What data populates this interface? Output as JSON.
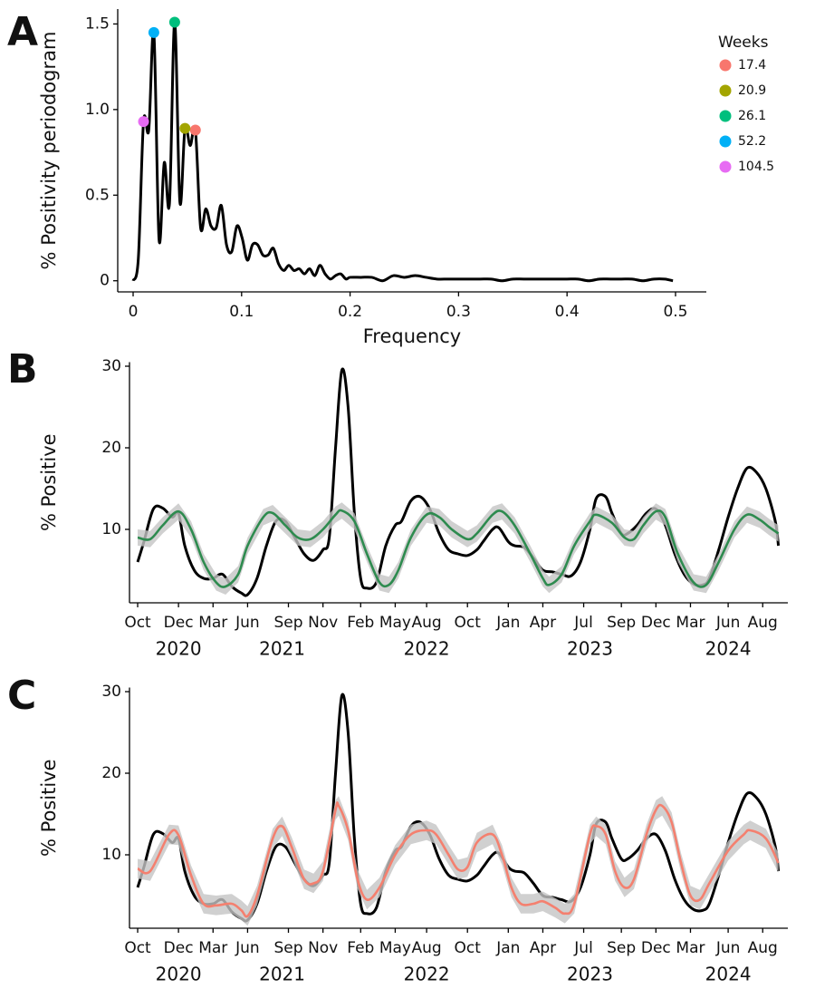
{
  "chart_data": [
    {
      "type": "line",
      "panel_label": "A",
      "ylabel": "% Positivity periodogram",
      "xlabel": "Frequency",
      "xlim": [
        -0.0142,
        0.5284
      ],
      "xticks": [
        0,
        0.1,
        0.2,
        0.3,
        0.4,
        0.5
      ],
      "ylim": [
        -0.065,
        1.587
      ],
      "yticks": [
        0,
        0.5,
        {
          "value": 1,
          "label": "1.0"
        },
        1.5
      ],
      "series": [
        {
          "color": "#000000",
          "x": [
            0,
            0.0048,
            0.0096,
            0.0144,
            0.0191,
            0.0239,
            0.0287,
            0.0335,
            0.0383,
            0.0431,
            0.0478,
            0.0526,
            0.0574,
            0.0622,
            0.067,
            0.0718,
            0.0766,
            0.0813,
            0.0861,
            0.0909,
            0.0957,
            0.1005,
            0.1053,
            0.11,
            0.1148,
            0.1196,
            0.1244,
            0.1292,
            0.134,
            0.1388,
            0.1435,
            0.1483,
            0.1531,
            0.1579,
            0.1627,
            0.1675,
            0.1722,
            0.177,
            0.1818,
            0.1866,
            0.1914,
            0.1962,
            0.2,
            0.21,
            0.22,
            0.23,
            0.24,
            0.25,
            0.26,
            0.27,
            0.28,
            0.29,
            0.3,
            0.31,
            0.32,
            0.33,
            0.34,
            0.35,
            0.36,
            0.37,
            0.38,
            0.39,
            0.4,
            0.41,
            0.42,
            0.43,
            0.44,
            0.45,
            0.46,
            0.47,
            0.48,
            0.49,
            0.4976
          ],
          "values": [
            0,
            0.13,
            0.93,
            0.88,
            1.45,
            0.24,
            0.69,
            0.45,
            1.51,
            0.46,
            0.89,
            0.79,
            0.88,
            0.31,
            0.42,
            0.32,
            0.31,
            0.44,
            0.21,
            0.17,
            0.32,
            0.25,
            0.12,
            0.21,
            0.21,
            0.15,
            0.15,
            0.19,
            0.1,
            0.06,
            0.09,
            0.06,
            0.07,
            0.04,
            0.07,
            0.03,
            0.09,
            0.04,
            0.01,
            0.03,
            0.04,
            0.01,
            0.02,
            0.02,
            0.02,
            0,
            0.03,
            0.02,
            0.03,
            0.02,
            0.01,
            0.01,
            0.01,
            0.01,
            0.01,
            0.01,
            0,
            0.01,
            0.01,
            0.01,
            0.01,
            0.01,
            0.01,
            0.01,
            0,
            0.01,
            0.01,
            0.01,
            0.01,
            0,
            0.01,
            0.01,
            0
          ]
        }
      ],
      "legend_title": "Weeks",
      "points": [
        {
          "name": "17.4",
          "color": "#f8766d",
          "x": 0.0574,
          "value": 0.88
        },
        {
          "name": "20.9",
          "color": "#a3a500",
          "x": 0.0478,
          "value": 0.89
        },
        {
          "name": "26.1",
          "color": "#00bf7d",
          "x": 0.0383,
          "value": 1.51
        },
        {
          "name": "52.2",
          "color": "#00b0f6",
          "x": 0.0191,
          "value": 1.45
        },
        {
          "name": "104.5",
          "color": "#e76bf3",
          "x": 0.0096,
          "value": 0.93
        }
      ]
    },
    {
      "type": "line",
      "panel_label": "B",
      "ylabel": "% Positive",
      "xlim": [
        -2.6,
        207
      ],
      "ylim": [
        1,
        30.5
      ],
      "yticks": [
        10,
        20,
        30
      ],
      "xticks": [
        {
          "value": 0,
          "label": "Oct"
        },
        {
          "value": 13,
          "label": "Dec"
        },
        {
          "value": 24,
          "label": "Mar"
        },
        {
          "value": 35,
          "label": "Jun"
        },
        {
          "value": 48,
          "label": "Sep"
        },
        {
          "value": 59,
          "label": "Nov"
        },
        {
          "value": 71,
          "label": "Feb"
        },
        {
          "value": 82,
          "label": "May"
        },
        {
          "value": 92,
          "label": "Aug"
        },
        {
          "value": 105,
          "label": "Oct"
        },
        {
          "value": 118,
          "label": "Jan"
        },
        {
          "value": 129,
          "label": "Apr"
        },
        {
          "value": 142,
          "label": "Jul"
        },
        {
          "value": 154,
          "label": "Sep"
        },
        {
          "value": 165,
          "label": "Dec"
        },
        {
          "value": 176,
          "label": "Mar"
        },
        {
          "value": 188,
          "label": "Jun"
        },
        {
          "value": 199,
          "label": "Aug"
        }
      ],
      "year_labels": [
        {
          "value": 13,
          "label": "2020"
        },
        {
          "value": 46,
          "label": "2021"
        },
        {
          "value": 92,
          "label": "2022"
        },
        {
          "value": 144,
          "label": "2023"
        },
        {
          "value": 188,
          "label": "2024"
        }
      ],
      "series": [
        {
          "color": "#000000",
          "x": [
            0,
            2,
            5,
            8,
            11,
            13,
            15,
            18,
            21,
            24,
            27,
            30,
            33,
            35,
            38,
            41,
            44,
            47,
            50,
            53,
            56,
            59,
            61,
            63,
            65,
            67,
            69,
            71,
            73,
            76,
            79,
            82,
            84,
            87,
            90,
            93,
            96,
            99,
            102,
            105,
            108,
            110,
            113,
            115,
            118,
            120,
            123,
            126,
            129,
            132,
            135,
            138,
            141,
            144,
            146,
            149,
            151,
            154,
            156,
            159,
            162,
            165,
            168,
            171,
            174,
            177,
            180,
            182,
            185,
            188,
            191,
            194,
            197,
            200,
            203,
            204
          ],
          "values": [
            6,
            8.5,
            12.5,
            12.6,
            11.5,
            12,
            8,
            5,
            4,
            4,
            4.5,
            3,
            2.2,
            2,
            4,
            8,
            11,
            11,
            9,
            7,
            6.2,
            7.5,
            9,
            20,
            29.5,
            25,
            12,
            4,
            2.8,
            3.5,
            8,
            10.5,
            11,
            13.5,
            14,
            12.5,
            9.5,
            7.5,
            7,
            6.8,
            7.5,
            8.5,
            10,
            10.2,
            8.5,
            8,
            7.8,
            6.5,
            5,
            4.8,
            4.5,
            4.3,
            6,
            10,
            13.8,
            14,
            12,
            9.5,
            9.5,
            10.5,
            12,
            12.5,
            10.5,
            7,
            4.5,
            3.3,
            3.2,
            4,
            7.5,
            11.5,
            15,
            17.5,
            17,
            15,
            11,
            8
          ]
        },
        {
          "color": "#2e8b4f",
          "ci": 1.0,
          "x": [
            0,
            4,
            8,
            13,
            17,
            21,
            25,
            28,
            32,
            35,
            40,
            43,
            47,
            51,
            55,
            59,
            63,
            65,
            69,
            73,
            77,
            80,
            83,
            87,
            92,
            96,
            100,
            105,
            108,
            113,
            116,
            120,
            125,
            129,
            131,
            135,
            139,
            144,
            146,
            151,
            155,
            158,
            161,
            165,
            168,
            172,
            177,
            181,
            185,
            190,
            194,
            198,
            201,
            204
          ],
          "values": [
            9,
            8.8,
            10.5,
            12.2,
            10,
            6,
            3.5,
            3,
            4.5,
            8,
            11.5,
            12,
            10.5,
            9,
            8.8,
            10,
            11.8,
            12.3,
            11,
            7,
            3.5,
            3.2,
            5,
            9,
            11.8,
            11.5,
            10,
            8.8,
            9.5,
            11.8,
            12.2,
            10.5,
            7,
            4,
            3.2,
            4.5,
            8,
            11,
            11.8,
            10.8,
            9,
            8.8,
            10.5,
            12.2,
            11.5,
            7,
            3.5,
            3.2,
            6,
            10,
            11.8,
            11.2,
            10.3,
            9.5
          ]
        }
      ]
    },
    {
      "type": "line",
      "panel_label": "C",
      "ylabel": "% Positive",
      "xlim": [
        -2.6,
        207
      ],
      "ylim": [
        1,
        30.5
      ],
      "yticks": [
        10,
        20,
        30
      ],
      "xticks": [
        {
          "value": 0,
          "label": "Oct"
        },
        {
          "value": 13,
          "label": "Dec"
        },
        {
          "value": 24,
          "label": "Mar"
        },
        {
          "value": 35,
          "label": "Jun"
        },
        {
          "value": 48,
          "label": "Sep"
        },
        {
          "value": 59,
          "label": "Nov"
        },
        {
          "value": 71,
          "label": "Feb"
        },
        {
          "value": 82,
          "label": "May"
        },
        {
          "value": 92,
          "label": "Aug"
        },
        {
          "value": 105,
          "label": "Oct"
        },
        {
          "value": 118,
          "label": "Jan"
        },
        {
          "value": 129,
          "label": "Apr"
        },
        {
          "value": 142,
          "label": "Jul"
        },
        {
          "value": 154,
          "label": "Sep"
        },
        {
          "value": 165,
          "label": "Dec"
        },
        {
          "value": 176,
          "label": "Mar"
        },
        {
          "value": 188,
          "label": "Jun"
        },
        {
          "value": 199,
          "label": "Aug"
        }
      ],
      "year_labels": [
        {
          "value": 13,
          "label": "2020"
        },
        {
          "value": 46,
          "label": "2021"
        },
        {
          "value": 92,
          "label": "2022"
        },
        {
          "value": 144,
          "label": "2023"
        },
        {
          "value": 188,
          "label": "2024"
        }
      ],
      "series": [
        {
          "color": "#000000",
          "x": [
            0,
            2,
            5,
            8,
            11,
            13,
            15,
            18,
            21,
            24,
            27,
            30,
            33,
            35,
            38,
            41,
            44,
            47,
            50,
            53,
            56,
            59,
            61,
            63,
            65,
            67,
            69,
            71,
            73,
            76,
            79,
            82,
            84,
            87,
            90,
            93,
            96,
            99,
            102,
            105,
            108,
            110,
            113,
            115,
            118,
            120,
            123,
            126,
            129,
            132,
            135,
            138,
            141,
            144,
            146,
            149,
            151,
            154,
            156,
            159,
            162,
            165,
            168,
            171,
            174,
            177,
            180,
            182,
            185,
            188,
            191,
            194,
            197,
            200,
            203,
            204
          ],
          "values": [
            6,
            8.5,
            12.5,
            12.6,
            11.5,
            12,
            8,
            5,
            4,
            4,
            4.5,
            3,
            2.2,
            2,
            4,
            8,
            11,
            11,
            9,
            7,
            6.2,
            7.5,
            9,
            20,
            29.5,
            25,
            12,
            4,
            2.8,
            3.5,
            8,
            10.5,
            11,
            13.5,
            14,
            12.5,
            9.5,
            7.5,
            7,
            6.8,
            7.5,
            8.5,
            10,
            10.2,
            8.5,
            8,
            7.8,
            6.5,
            5,
            4.8,
            4.5,
            4.3,
            6,
            10,
            13.8,
            14,
            12,
            9.5,
            9.5,
            10.5,
            12,
            12.5,
            10.5,
            7,
            4.5,
            3.3,
            3.2,
            4,
            7.5,
            11.5,
            15,
            17.5,
            17,
            15,
            11,
            8
          ]
        },
        {
          "color": "#f4806f",
          "ci": 1.2,
          "x": [
            0,
            4,
            10,
            13,
            17,
            21,
            25,
            30,
            33,
            35,
            38,
            43,
            46,
            49,
            53,
            56,
            59,
            63,
            64,
            67,
            70,
            73,
            77,
            82,
            87,
            92,
            95,
            99,
            102,
            105,
            108,
            113,
            116,
            119,
            122,
            126,
            129,
            133,
            136,
            139,
            144,
            146,
            149,
            152,
            155,
            158,
            162,
            165,
            167,
            170,
            173,
            176,
            179,
            182,
            188,
            193,
            195,
            200,
            204
          ],
          "values": [
            8.3,
            8,
            12.5,
            12.4,
            7.5,
            4,
            3.8,
            4,
            3.2,
            2.5,
            5,
            12,
            13.5,
            11,
            7,
            6.5,
            8,
            15.5,
            16,
            13,
            7,
            4.5,
            6,
            10,
            12.5,
            13,
            12.5,
            10,
            8.2,
            8.5,
            11.5,
            12.5,
            10,
            6,
            4,
            4,
            4.3,
            3.5,
            2.8,
            4,
            12.5,
            13.5,
            12.5,
            8,
            6,
            7,
            12.5,
            15.5,
            16,
            14,
            9,
            5,
            4.5,
            6.5,
            10.5,
            12.5,
            13,
            12,
            9
          ]
        }
      ]
    }
  ]
}
